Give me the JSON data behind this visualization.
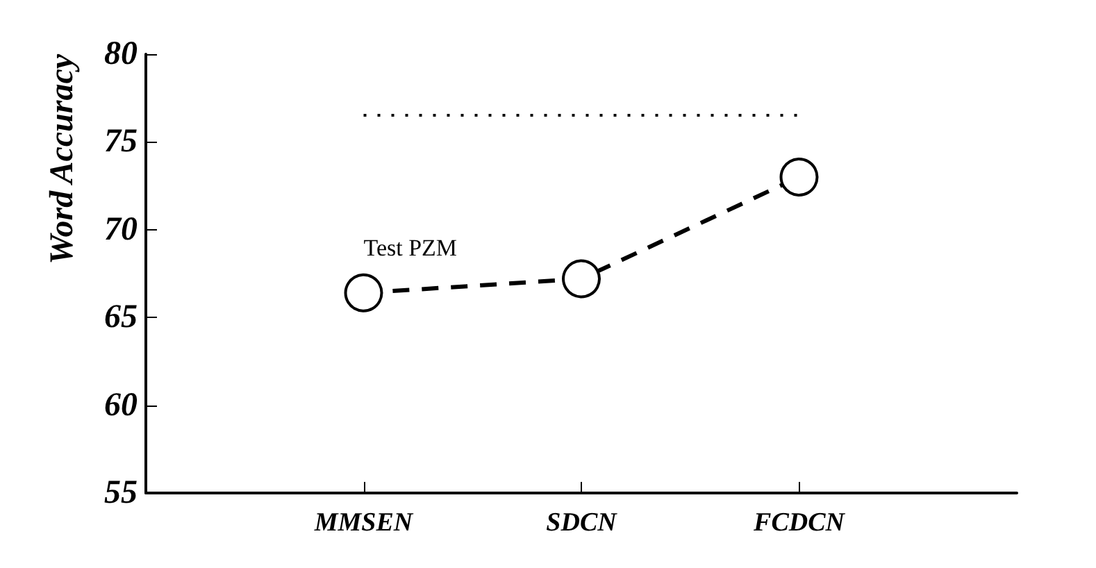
{
  "chart_data": {
    "type": "line",
    "ylabel": "Word Accuracy",
    "categories": [
      null,
      "MMSEN",
      "SDCN",
      "FCDCN",
      null
    ],
    "series": [
      {
        "color": "#000000",
        "values": [
          null,
          66.4,
          67.2,
          73.0,
          null
        ]
      }
    ],
    "ylim": [
      55,
      80
    ],
    "yticks": [
      55,
      60,
      65,
      70,
      75,
      80
    ],
    "grid": false,
    "marker": "circle",
    "line_style": "dashed",
    "ref_lines": [
      {
        "axis": "y",
        "value": 76.5,
        "line_style": "dotted",
        "color": "#000000"
      }
    ],
    "annotations": [
      "Test PZM"
    ]
  }
}
